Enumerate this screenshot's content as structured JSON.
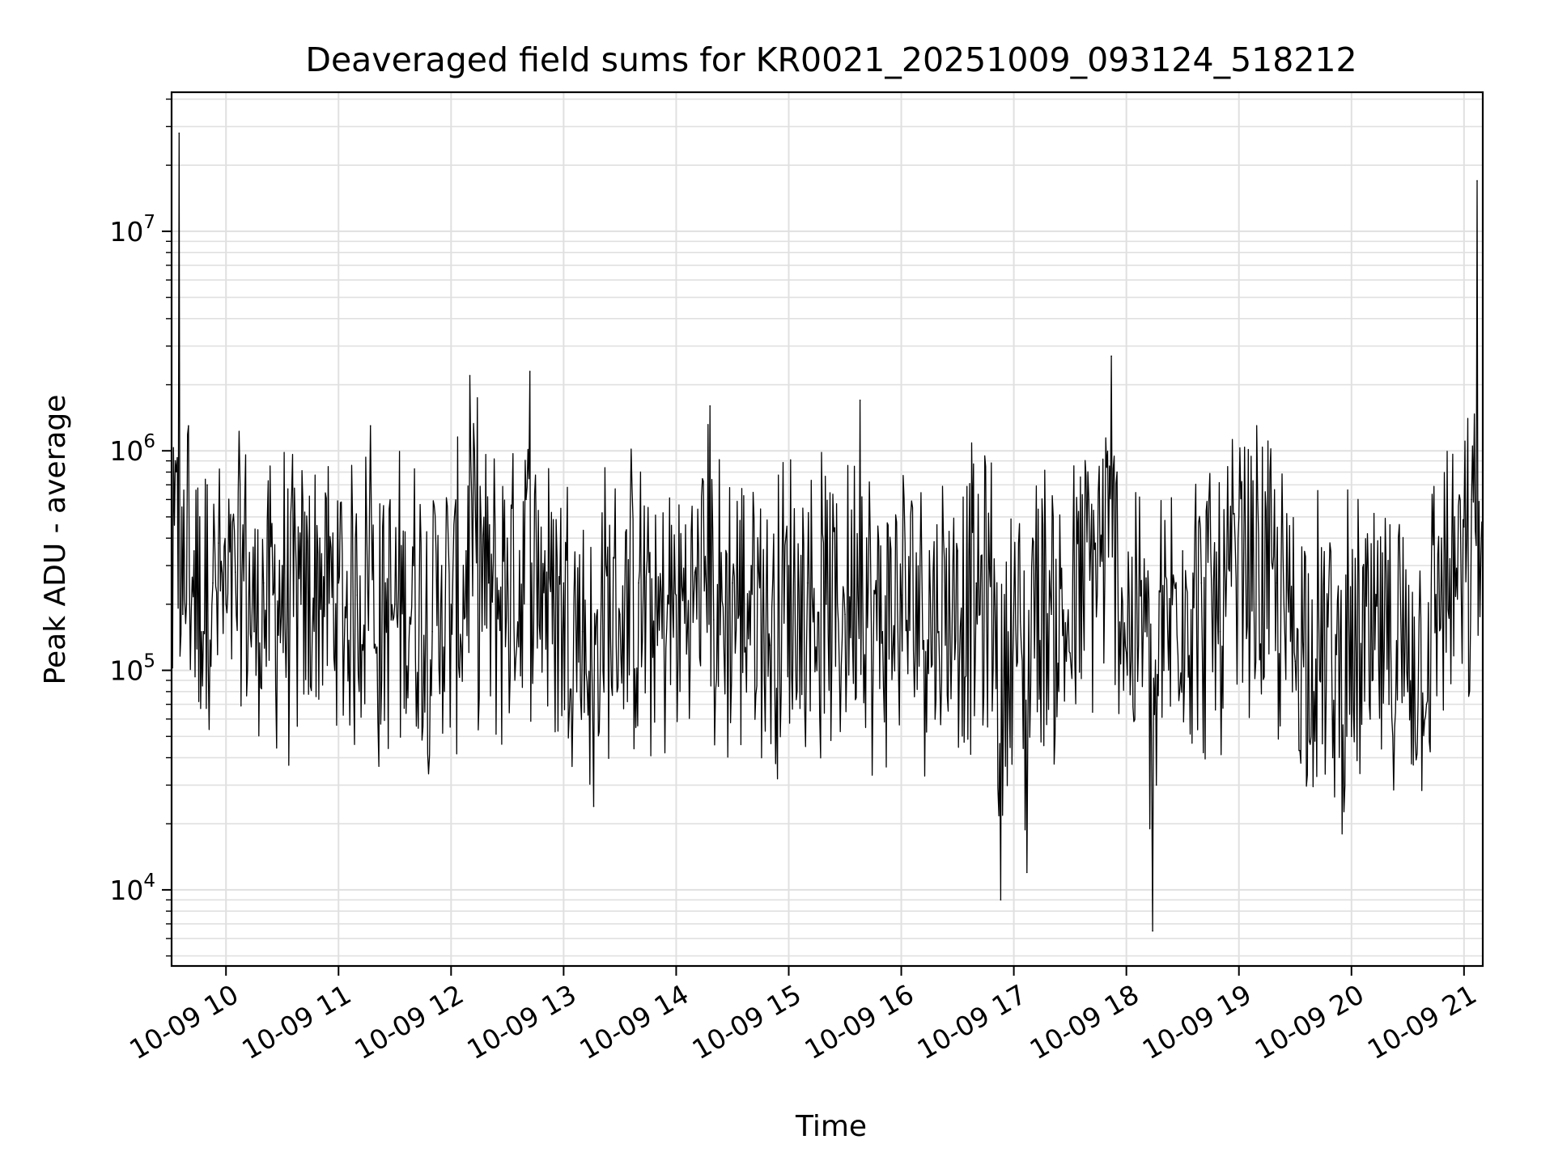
{
  "chart_data": {
    "type": "line",
    "title": "Deaveraged field sums for KR0021_20251009_093124_518212",
    "xlabel": "Time",
    "ylabel": "Peak ADU - average",
    "yscale": "log",
    "grid": true,
    "line_color": "#000000",
    "grid_color": "#e0e0e0",
    "xlim": [
      "2025-10-09 09:31",
      "2025-10-09 21:10"
    ],
    "ylim": [
      4500,
      43000000
    ],
    "xtick_labels": [
      "10-09 10",
      "10-09 11",
      "10-09 12",
      "10-09 13",
      "10-09 14",
      "10-09 15",
      "10-09 16",
      "10-09 17",
      "10-09 18",
      "10-09 19",
      "10-09 20",
      "10-09 21"
    ],
    "xtick_values": [
      "2025-10-09 10:00",
      "2025-10-09 11:00",
      "2025-10-09 12:00",
      "2025-10-09 13:00",
      "2025-10-09 14:00",
      "2025-10-09 15:00",
      "2025-10-09 16:00",
      "2025-10-09 17:00",
      "2025-10-09 18:00",
      "2025-10-09 19:00",
      "2025-10-09 20:00",
      "2025-10-09 21:00"
    ],
    "ytick_labels": [
      {
        "base": "10",
        "exp": "4",
        "value": 10000
      },
      {
        "base": "10",
        "exp": "5",
        "value": 100000
      },
      {
        "base": "10",
        "exp": "6",
        "value": 1000000
      },
      {
        "base": "10",
        "exp": "7",
        "value": 10000000
      }
    ],
    "series": [
      {
        "x": [
          "2025-10-09 09:31",
          "2025-10-09 09:33",
          "2025-10-09 09:35",
          "2025-10-09 09:37",
          "2025-10-09 09:40",
          "2025-10-09 09:43",
          "2025-10-09 09:46",
          "2025-10-09 09:48",
          "2025-10-09 09:50",
          "2025-10-09 09:53",
          "2025-10-09 09:56",
          "2025-10-09 10:00",
          "2025-10-09 10:05",
          "2025-10-09 10:10",
          "2025-10-09 10:15",
          "2025-10-09 10:20",
          "2025-10-09 10:30",
          "2025-10-09 10:40",
          "2025-10-09 10:50",
          "2025-10-09 11:00",
          "2025-10-09 11:10",
          "2025-10-09 11:17",
          "2025-10-09 11:20",
          "2025-10-09 11:30",
          "2025-10-09 11:40",
          "2025-10-09 11:50",
          "2025-10-09 11:55",
          "2025-10-09 12:00",
          "2025-10-09 12:08",
          "2025-10-09 12:10",
          "2025-10-09 12:20",
          "2025-10-09 12:30",
          "2025-10-09 12:40",
          "2025-10-09 12:42",
          "2025-10-09 12:50",
          "2025-10-09 13:00",
          "2025-10-09 13:10",
          "2025-10-09 13:16",
          "2025-10-09 13:20",
          "2025-10-09 13:30",
          "2025-10-09 13:40",
          "2025-10-09 13:50",
          "2025-10-09 14:00",
          "2025-10-09 14:10",
          "2025-10-09 14:18",
          "2025-10-09 14:20",
          "2025-10-09 14:30",
          "2025-10-09 14:40",
          "2025-10-09 14:50",
          "2025-10-09 15:00",
          "2025-10-09 15:10",
          "2025-10-09 15:20",
          "2025-10-09 15:30",
          "2025-10-09 15:38",
          "2025-10-09 15:45",
          "2025-10-09 15:50",
          "2025-10-09 16:00",
          "2025-10-09 16:10",
          "2025-10-09 16:20",
          "2025-10-09 16:30",
          "2025-10-09 16:40",
          "2025-10-09 16:50",
          "2025-10-09 16:53",
          "2025-10-09 17:00",
          "2025-10-09 17:07",
          "2025-10-09 17:10",
          "2025-10-09 17:20",
          "2025-10-09 17:30",
          "2025-10-09 17:40",
          "2025-10-09 17:52",
          "2025-10-09 17:55",
          "2025-10-09 18:00",
          "2025-10-09 18:10",
          "2025-10-09 18:14",
          "2025-10-09 18:16",
          "2025-10-09 18:20",
          "2025-10-09 18:30",
          "2025-10-09 18:40",
          "2025-10-09 18:50",
          "2025-10-09 19:00",
          "2025-10-09 19:10",
          "2025-10-09 19:20",
          "2025-10-09 19:30",
          "2025-10-09 19:40",
          "2025-10-09 19:50",
          "2025-10-09 20:00",
          "2025-10-09 20:10",
          "2025-10-09 20:20",
          "2025-10-09 20:30",
          "2025-10-09 20:40",
          "2025-10-09 20:48",
          "2025-10-09 20:55",
          "2025-10-09 21:00",
          "2025-10-09 21:04",
          "2025-10-09 21:07",
          "2025-10-09 21:10"
        ],
        "values": [
          130000,
          900000,
          28000000,
          180000,
          1300000,
          350000,
          500000,
          150000,
          700000,
          250000,
          380000,
          200000,
          280000,
          600000,
          150000,
          250000,
          300000,
          200000,
          400000,
          250000,
          220000,
          1300000,
          120000,
          200000,
          300000,
          150000,
          300000,
          200000,
          350000,
          2200000,
          250000,
          400000,
          600000,
          2300000,
          350000,
          250000,
          150000,
          24000,
          200000,
          180000,
          250000,
          130000,
          220000,
          280000,
          1600000,
          170000,
          250000,
          300000,
          130000,
          300000,
          250000,
          200000,
          180000,
          1700000,
          100000,
          150000,
          220000,
          300000,
          150000,
          350000,
          250000,
          200000,
          9000,
          200000,
          12000,
          400000,
          180000,
          120000,
          600000,
          2700000,
          800000,
          120000,
          150000,
          6500,
          30000,
          100000,
          350000,
          250000,
          150000,
          500000,
          600000,
          250000,
          110000,
          80000,
          40000,
          50000,
          60000,
          70000,
          80000,
          70000,
          400000,
          500000,
          450000,
          600000,
          17000000,
          400000
        ]
      }
    ]
  }
}
